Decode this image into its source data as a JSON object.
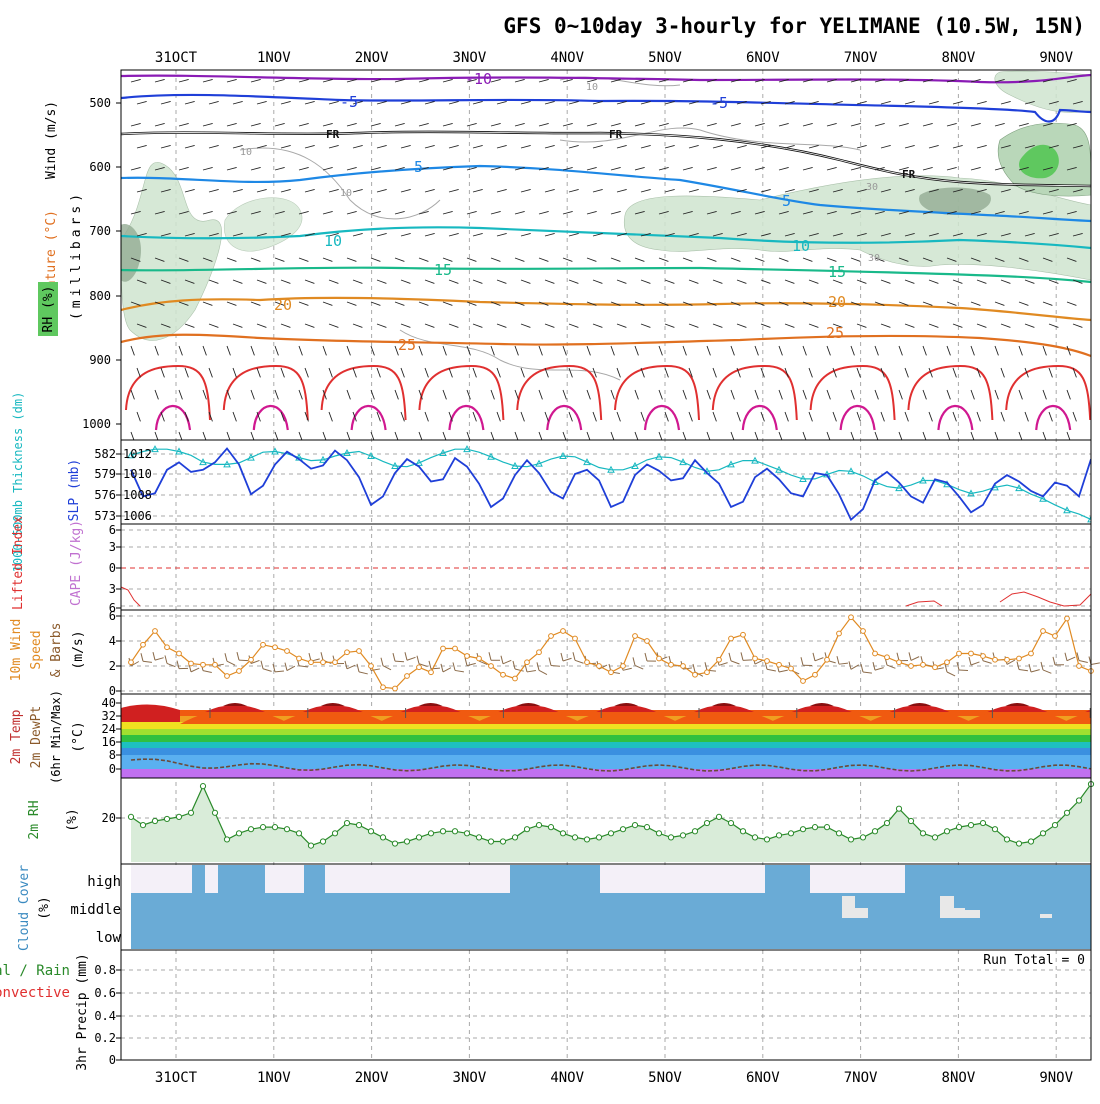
{
  "title": "GFS 0~10day 3-hourly for YELIMANE (10.5W, 15N)",
  "days": [
    "31OCT",
    "1NOV",
    "2NOV",
    "3NOV",
    "4NOV",
    "5NOV",
    "6NOV",
    "7NOV",
    "8NOV",
    "9NOV"
  ],
  "colors": {
    "purple": "#8a1bb5",
    "blue": "#1f3fd8",
    "black": "#111111",
    "skyblue": "#1e88e5",
    "teal": "#17b8c0",
    "green": "#19b98a",
    "orange": "#e08a22",
    "darkorange": "#e07020",
    "red": "#e03030",
    "magenta": "#d01890",
    "rhfill": "#cfe5cf",
    "cloud": "#6aabd6"
  },
  "panels": {
    "upper": {
      "ylabels": {
        "wind": "Wind (m/s)",
        "temp": "Temperature (°C)",
        "rh": "RH (%)",
        "unit": "(millibars)"
      },
      "yticks": [
        "500",
        "600",
        "700",
        "800",
        "900",
        "1000"
      ],
      "contour_labels": {
        "m10": "-10",
        "m5": "-5",
        "fr": "FR",
        "fr2": "FR",
        "fr3": "FR",
        "p5a": "5",
        "p5b": "5",
        "p10a": "10",
        "p10b": "10",
        "p15a": "15",
        "p15b": "15",
        "p20a": "20",
        "p20b": "20",
        "p25a": "25",
        "p25b": "25",
        "rh10a": "10",
        "rh10b": "10",
        "rh10c": "10",
        "rh30a": "30",
        "rh30b": "30"
      }
    },
    "slp": {
      "ylabels": {
        "thick": "1000-500mb Thickness (dm)",
        "slp": "SLP (mb)"
      },
      "left_ticks": [
        "582",
        "579",
        "576",
        "573"
      ],
      "right_ticks": [
        "1012",
        "1010",
        "1008",
        "1006"
      ]
    },
    "cape": {
      "ylabels": {
        "li": "Lifted Index",
        "cape": "CAPE (J/kg)"
      },
      "ticks": [
        "6",
        "3",
        "0",
        "3",
        "6"
      ]
    },
    "wind10": {
      "ylabels": {
        "a": "10m Wind",
        "b": "Speed",
        "c": "& Barbs",
        "unit": "(m/s)"
      },
      "ticks": [
        "6",
        "4",
        "2",
        "0"
      ]
    },
    "temp2m": {
      "ylabels": {
        "a": "2m Temp",
        "b": "2m DewPt",
        "c": "(6hr Min/Max)",
        "unit": "(°C)"
      },
      "ticks": [
        "40",
        "32",
        "24",
        "16",
        "8",
        "0"
      ]
    },
    "rh2m": {
      "ylabels": {
        "a": "2m RH",
        "unit": "(%)"
      },
      "ticks": [
        "20"
      ]
    },
    "cloud": {
      "ylabels": {
        "a": "Cloud Cover",
        "unit": "(%)"
      },
      "levels": [
        "high",
        "middle",
        "low"
      ]
    },
    "precip": {
      "ylabels": {
        "a": "Total / Rain",
        "b": "Convective",
        "c": "3hr Precip (mm)"
      },
      "ticks": [
        "0.8",
        "0.6",
        "0.4",
        "0.2",
        "0"
      ],
      "run_total": "Run Total = 0"
    }
  },
  "chart_data": [
    {
      "type": "line",
      "title": "1000-500mb Thickness (dm) / SLP (mb)",
      "x": [
        0,
        1,
        2,
        3,
        4,
        5,
        6,
        7,
        8,
        9,
        10,
        11,
        12,
        13,
        14,
        15,
        16,
        17,
        18,
        19,
        20,
        21,
        22,
        23,
        24,
        25,
        26,
        27,
        28,
        29,
        30,
        31,
        32,
        33,
        34,
        35,
        36,
        37,
        38,
        39,
        40,
        41,
        42,
        43,
        44,
        45,
        46,
        47,
        48,
        49,
        50,
        51,
        52,
        53,
        54,
        55,
        56,
        57,
        58,
        59,
        60,
        61,
        62,
        63,
        64,
        65,
        66,
        67,
        68,
        69,
        70,
        71,
        72,
        73,
        74,
        75,
        76,
        77,
        78,
        79,
        80
      ],
      "series": [
        {
          "name": "SLP (mb)",
          "values": [
            1010.5,
            1008.0,
            1008.3,
            1010.5,
            1011.2,
            1010.3,
            1010.5,
            1011.2,
            1012.5,
            1011.0,
            1008.2,
            1009.0,
            1011.0,
            1012.2,
            1011.5,
            1010.6,
            1010.9,
            1012.3,
            1011.4,
            1009.8,
            1007.2,
            1008.0,
            1010.2,
            1011.5,
            1010.8,
            1009.4,
            1009.6,
            1011.6,
            1010.8,
            1009.2,
            1007.0,
            1007.8,
            1010.0,
            1011.4,
            1010.2,
            1008.4,
            1007.8,
            1010.1,
            1010.5,
            1009.5,
            1007.0,
            1007.5,
            1010.0,
            1011.0,
            1010.4,
            1009.5,
            1009.7,
            1011.4,
            1010.2,
            1009.2,
            1007.0,
            1007.5,
            1009.8,
            1010.6,
            1009.6,
            1008.3,
            1008.0,
            1010.2,
            1010.0,
            1008.2,
            1005.8,
            1006.8,
            1009.5,
            1010.3,
            1009.3,
            1008.0,
            1007.4,
            1009.6,
            1009.3,
            1008.0,
            1006.5,
            1007.2,
            1009.2,
            1010.0,
            1009.4,
            1008.5,
            1008.0,
            1009.3,
            1009.0,
            1008.0,
            1011.5
          ]
        },
        {
          "name": "1000-500mb Thickness (dm)",
          "values": [
            581.5,
            582.0,
            582.3,
            582.3,
            582.0,
            581.5,
            580.6,
            580.3,
            580.3,
            580.5,
            581.2,
            581.9,
            582.0,
            581.7,
            581.2,
            580.8,
            580.9,
            581.4,
            581.8,
            582.0,
            581.4,
            580.7,
            580.1,
            580.0,
            580.5,
            581.2,
            581.8,
            582.3,
            582.3,
            581.9,
            581.3,
            580.6,
            580.1,
            580.0,
            580.4,
            581.0,
            581.4,
            581.3,
            580.6,
            579.9,
            579.6,
            579.6,
            580.1,
            580.9,
            581.3,
            581.2,
            580.6,
            579.9,
            579.4,
            579.6,
            580.3,
            580.8,
            580.8,
            580.2,
            579.6,
            578.9,
            578.4,
            578.4,
            579.0,
            579.5,
            579.4,
            578.8,
            578.0,
            577.4,
            577.2,
            577.6,
            578.2,
            578.2,
            577.7,
            577.0,
            576.5,
            576.8,
            577.3,
            577.6,
            577.2,
            576.4,
            575.8,
            575.0,
            574.3,
            573.8,
            573.1
          ]
        }
      ],
      "ylim_left": [
        572.5,
        583.5
      ],
      "ylim_right": [
        1005.4,
        1013.3
      ]
    },
    {
      "type": "line",
      "title": "10m Wind Speed (m/s)",
      "x": [
        0,
        1,
        2,
        3,
        4,
        5,
        6,
        7,
        8,
        9,
        10,
        11,
        12,
        13,
        14,
        15,
        16,
        17,
        18,
        19,
        20,
        21,
        22,
        23,
        24,
        25,
        26,
        27,
        28,
        29,
        30,
        31,
        32,
        33,
        34,
        35,
        36,
        37,
        38,
        39,
        40,
        41,
        42,
        43,
        44,
        45,
        46,
        47,
        48,
        49,
        50,
        51,
        52,
        53,
        54,
        55,
        56,
        57,
        58,
        59,
        60,
        61,
        62,
        63,
        64,
        65,
        66,
        67,
        68,
        69,
        70,
        71,
        72,
        73,
        74,
        75,
        76,
        77,
        78,
        79,
        80
      ],
      "series": [
        {
          "name": "10m Wind Speed",
          "values": [
            2.3,
            3.7,
            4.8,
            3.5,
            3.0,
            2.2,
            2.1,
            2.1,
            1.2,
            1.6,
            2.5,
            3.7,
            3.5,
            3.2,
            2.6,
            2.3,
            2.3,
            2.3,
            3.1,
            3.2,
            2.0,
            0.3,
            0.2,
            1.2,
            1.9,
            1.5,
            3.4,
            3.4,
            2.8,
            2.6,
            2.0,
            1.3,
            1.0,
            2.3,
            3.1,
            4.4,
            4.8,
            4.2,
            2.3,
            2.0,
            1.5,
            2.0,
            4.4,
            4.0,
            2.6,
            2.1,
            2.0,
            1.3,
            1.5,
            2.5,
            4.2,
            4.5,
            2.6,
            2.4,
            2.1,
            1.8,
            0.8,
            1.3,
            2.5,
            4.6,
            5.9,
            4.8,
            3.0,
            2.7,
            2.3,
            2.0,
            2.1,
            1.9,
            2.3,
            3.0,
            3.0,
            2.8,
            2.5,
            2.5,
            2.6,
            3.0,
            4.8,
            4.4,
            5.8,
            2.0,
            1.6
          ]
        }
      ],
      "ylim": [
        0,
        6
      ]
    },
    {
      "type": "line",
      "title": "2m RH (%)",
      "x": [
        0,
        1,
        2,
        3,
        4,
        5,
        6,
        7,
        8,
        9,
        10,
        11,
        12,
        13,
        14,
        15,
        16,
        17,
        18,
        19,
        20,
        21,
        22,
        23,
        24,
        25,
        26,
        27,
        28,
        29,
        30,
        31,
        32,
        33,
        34,
        35,
        36,
        37,
        38,
        39,
        40,
        41,
        42,
        43,
        44,
        45,
        46,
        47,
        48,
        49,
        50,
        51,
        52,
        53,
        54,
        55,
        56,
        57,
        58,
        59,
        60,
        61,
        62,
        63,
        64,
        65,
        66,
        67,
        68,
        69,
        70,
        71,
        72,
        73,
        74,
        75,
        76,
        77,
        78,
        79,
        80
      ],
      "series": [
        {
          "name": "2m RH",
          "values": [
            22,
            18,
            20,
            21,
            22,
            24,
            37,
            24,
            11,
            14,
            16,
            17,
            17,
            16,
            14,
            8,
            10,
            14,
            19,
            18,
            15,
            12,
            9,
            10,
            12,
            14,
            15,
            15,
            14,
            12,
            10,
            10,
            12,
            16,
            18,
            17,
            14,
            12,
            11,
            12,
            14,
            16,
            18,
            17,
            14,
            12,
            13,
            15,
            19,
            22,
            19,
            15,
            12,
            11,
            13,
            14,
            16,
            17,
            17,
            14,
            11,
            12,
            15,
            19,
            26,
            20,
            14,
            12,
            15,
            17,
            18,
            19,
            16,
            11,
            9,
            10,
            14,
            18,
            24,
            30,
            38
          ]
        }
      ],
      "ylim": [
        0,
        40
      ]
    },
    {
      "type": "area",
      "title": "3hr Precip (mm)",
      "series": [
        {
          "name": "Total / Rain",
          "values": [
            0
          ]
        }
      ],
      "ylim": [
        0,
        1
      ]
    }
  ]
}
